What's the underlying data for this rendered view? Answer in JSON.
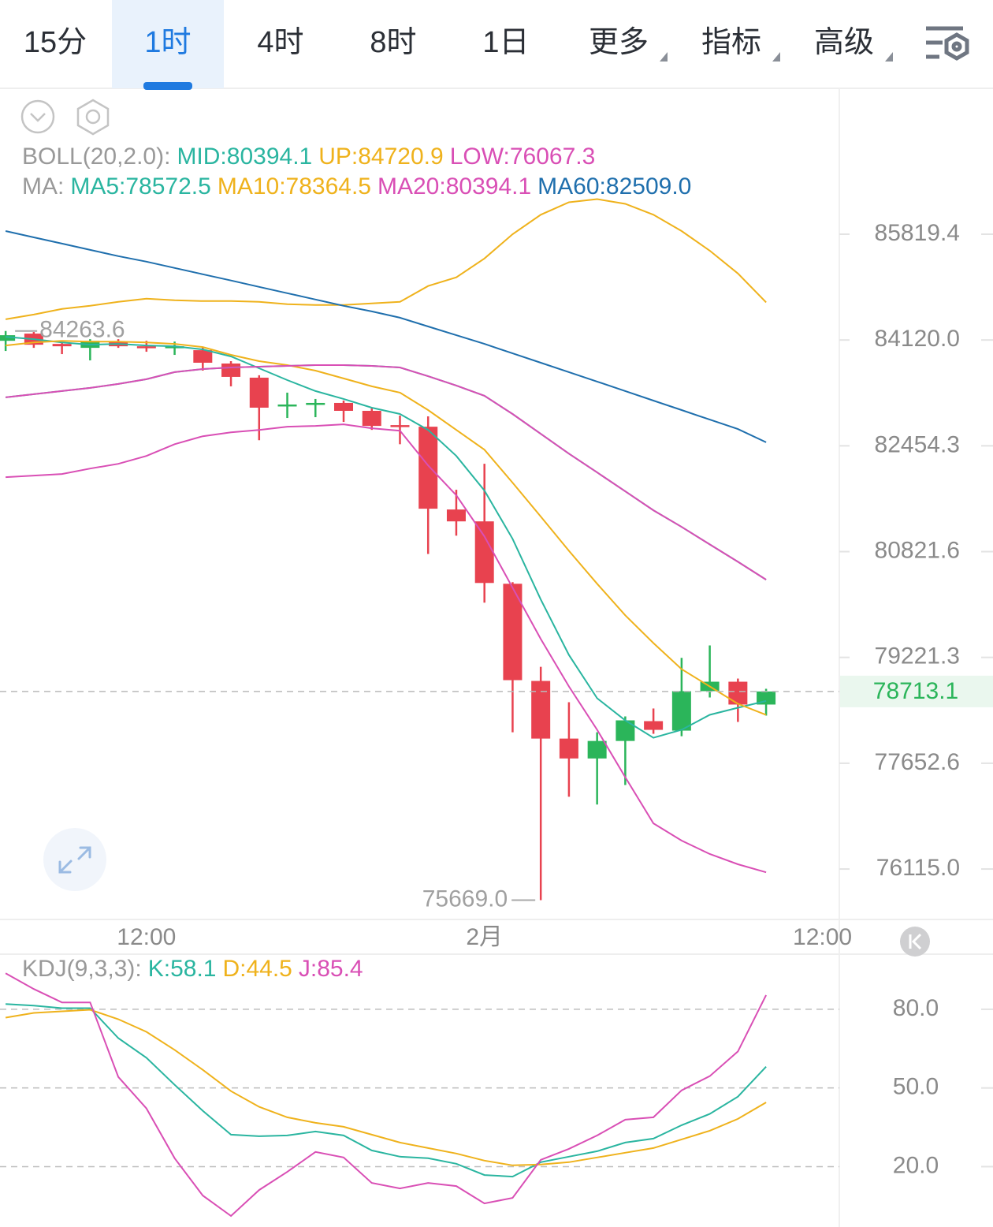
{
  "tabs": {
    "items": [
      {
        "label": "15分"
      },
      {
        "label": "1时"
      },
      {
        "label": "4时"
      },
      {
        "label": "8时"
      },
      {
        "label": "1日"
      },
      {
        "label": "更多",
        "dropdown": true
      },
      {
        "label": "指标",
        "dropdown": true
      },
      {
        "label": "高级",
        "dropdown": true
      }
    ],
    "selected": 1
  },
  "chart_data": [
    {
      "type": "candlestick",
      "log_scale": true,
      "xlim": [
        -0.2,
        29.6
      ],
      "xticks": [
        {
          "value": 5,
          "label": "12:00"
        },
        {
          "value": 17,
          "label": "2月"
        },
        {
          "value": 29,
          "label": "12:00"
        }
      ],
      "ylim": [
        75404,
        88219
      ],
      "yticks": [
        85819.4,
        {
          "value": 84120.0,
          "label": "84120.0"
        },
        82454.3,
        80821.6,
        79221.3,
        77652.6,
        {
          "value": 76115.0,
          "label": "76115.0"
        }
      ],
      "up_color": "#2bb55a",
      "down_color": "#e8424f",
      "open": [
        84107.6,
        84221.8,
        84057.9,
        83995.7,
        84095.1,
        84020.6,
        84008.1,
        83958.4,
        83747.1,
        83523.4,
        83075.9,
        83100.7,
        83125.6,
        83001.3,
        82777.6,
        82752.7,
        81467.7,
        81285.0,
        80332.1,
        78870.0,
        78015.2,
        77722.5,
        77980.1,
        78272.8,
        78132.3,
        78717.8,
        78858.3,
        78518.7
      ],
      "high": [
        84263.6,
        84247.1,
        84095.1,
        84133.0,
        84133.0,
        84107.6,
        84095.1,
        84008.1,
        83784.4,
        83560.7,
        83287.2,
        83187.8,
        83162.9,
        83038.6,
        82926.7,
        82914.3,
        81772.2,
        82174.2,
        80355.9,
        79080.8,
        78553.8,
        78108.9,
        78343.1,
        78460.2,
        79215.0,
        79400.7,
        78905.1,
        78752.9
      ],
      "low": [
        83946.0,
        83995.7,
        83896.3,
        83796.8,
        83995.7,
        83933.6,
        83883.8,
        83635.2,
        83386.7,
        82541.4,
        82889.4,
        82901.9,
        82827.3,
        82703.0,
        82479.2,
        80785.8,
        81065.8,
        80045.5,
        78108.9,
        75669.0,
        77162.8,
        77049.0,
        77333.7,
        78085.5,
        78050.4,
        78624.1,
        78261.1,
        78354.8
      ],
      "close": [
        84196.4,
        84045.4,
        84020.6,
        84107.6,
        84020.6,
        84008.1,
        84020.6,
        83759.5,
        83535.8,
        83051.0,
        83100.7,
        83125.6,
        83001.3,
        82765.1,
        82752.7,
        81479.9,
        81285.0,
        80344.0,
        78881.7,
        78015.2,
        77722.5,
        77980.1,
        78284.5,
        78144.0,
        78717.8,
        78858.3,
        78518.7,
        78713.1
      ],
      "annotations": [
        {
          "x": 0,
          "y": 84263.6
        },
        {
          "x": 19,
          "y": 75669.0,
          "label": "75669.0"
        }
      ],
      "indicators": [
        {
          "label": "BOLL(20,2.0):",
          "series": [
            {
              "name": "MID:",
              "color": "#2ab5a0",
              "current": 80394.1,
              "values": [
                83212.6,
                83262.3,
                83312.1,
                83361.8,
                83423.9,
                83498.5,
                83610.4,
                83660.1,
                83684.9,
                83697.4,
                83709.8,
                83722.2,
                83722.2,
                83709.8,
                83684.9,
                83546.2,
                83399.1,
                83237.5,
                82951.6,
                82640.8,
                82332.5,
                82040.2,
                81747.9,
                81455.5,
                81199.8,
                80931.7,
                80666.4,
                80394.1
              ]
            },
            {
              "name": "UP:",
              "color": "#efb21c",
              "current": 84720.9,
              "values": [
                84450.0,
                84526.0,
                84614.8,
                84665.4,
                84728.9,
                84779.6,
                84754.3,
                84741.6,
                84741.6,
                84728.9,
                84690.9,
                84678.2,
                84678.2,
                84703.6,
                84728.9,
                84982.5,
                85122.0,
                85426.3,
                85819.4,
                86136.4,
                86339.3,
                86390.0,
                86313.9,
                86136.4,
                85870.1,
                85553.1,
                85185.4,
                84720.9
              ]
            },
            {
              "name": "LOW:",
              "color": "#d94fb5",
              "current": 76067.3,
              "values": [
                81967.1,
                81991.5,
                82015.8,
                82101.1,
                82174.2,
                82296.0,
                82479.2,
                82603.5,
                82665.7,
                82703.0,
                82752.7,
                82765.1,
                82790.0,
                82727.8,
                82690.6,
                82150.0,
                81687.0,
                81053.2,
                80272.4,
                79496.3,
                78788.0,
                78144.0,
                77447.6,
                76775.6,
                76525.0,
                76331.4,
                76183.3,
                76067.3
              ]
            }
          ]
        },
        {
          "label": "MA:",
          "series": [
            {
              "name": "MA5:",
              "color": "#2ab5a0",
              "current": 78572.5,
              "values": [
                84171.0,
                84133.0,
                84082.7,
                84045.4,
                84057.9,
                84033.0,
                84020.6,
                83970.8,
                83859.0,
                83671.7,
                83485.1,
                83312.1,
                83187.8,
                83051.0,
                82951.6,
                82703.0,
                82296.0,
                81760.1,
                81017.0,
                80093.3,
                79257.5,
                78612.4,
                78284.5,
                78026.9,
                78144.0,
                78366.5,
                78471.9,
                78572.5
              ]
            },
            {
              "name": "MA10:",
              "color": "#efb21c",
              "current": 78364.5,
              "values": [
                84033.0,
                84082.7,
                84107.6,
                84095.1,
                84095.1,
                84082.7,
                84057.9,
                84008.1,
                83883.8,
                83784.4,
                83722.2,
                83635.2,
                83510.9,
                83386.7,
                83287.2,
                83013.8,
                82703.0,
                82393.4,
                81881.8,
                81358.1,
                80834.3,
                80332.1,
                79854.5,
                79436.6,
                79045.7,
                78788.0,
                78530.4,
                78364.5
              ]
            },
            {
              "name": "MA20:",
              "color": "#d94fb5",
              "current": 80394.1,
              "values": [
                83212.6,
                83262.3,
                83312.1,
                83361.8,
                83423.9,
                83498.5,
                83610.4,
                83660.1,
                83684.9,
                83697.4,
                83709.8,
                83722.2,
                83722.2,
                83709.8,
                83684.9,
                83546.2,
                83399.1,
                83237.5,
                82951.6,
                82640.8,
                82332.5,
                82040.2,
                81747.9,
                81455.5,
                81199.8,
                80931.7,
                80666.4,
                80394.1
              ]
            },
            {
              "name": "MA60:",
              "color": "#1f6fad",
              "current": {
                "value": 82509.0,
                "label": "82509.0"
              },
              "values": [
                85870.1,
                85768.7,
                85667.3,
                85565.8,
                85464.4,
                85375.6,
                85274.2,
                85172.7,
                85071.3,
                84969.8,
                84868.3,
                84766.9,
                84665.4,
                84576.6,
                84475.0,
                84335.6,
                84196.1,
                84057.9,
                83908.7,
                83759.5,
                83610.4,
                83461.2,
                83312.1,
                83162.9,
                83013.8,
                82864.6,
                82715.5,
                82509.0
              ]
            }
          ]
        }
      ]
    },
    {
      "type": "line",
      "label": "KDJ(9,3,3):",
      "xlim": [
        -0.2,
        29.6
      ],
      "ylim": [
        -3,
        101
      ],
      "grid": true,
      "yticks": [
        {
          "value": 80.0,
          "label": "80.0"
        },
        {
          "value": 50.0,
          "label": "50.0"
        },
        {
          "value": 20.0,
          "label": "20.0"
        }
      ],
      "series": [
        {
          "name": "K:",
          "color": "#2ab5a0",
          "current": 58.1,
          "values": [
            82.0,
            81.4,
            80.4,
            80.4,
            69.0,
            61.5,
            51.2,
            41.3,
            32.2,
            31.6,
            31.9,
            33.4,
            31.9,
            26.2,
            23.8,
            23.2,
            21.1,
            16.8,
            16.2,
            21.7,
            23.8,
            25.9,
            29.2,
            30.7,
            35.8,
            40.1,
            46.7,
            58.1
          ]
        },
        {
          "name": "D:",
          "color": "#efb21c",
          "current": 44.5,
          "values": [
            76.8,
            78.6,
            79.2,
            79.8,
            76.2,
            71.4,
            64.5,
            56.9,
            48.8,
            42.8,
            38.8,
            36.7,
            35.2,
            32.2,
            29.2,
            27.1,
            25.0,
            22.3,
            20.5,
            20.8,
            21.7,
            23.5,
            25.3,
            27.1,
            30.4,
            33.7,
            38.2,
            44.5
          ]
        },
        {
          "name": "J:",
          "color": "#d94fb5",
          "current": 85.4,
          "values": [
            93.7,
            87.7,
            82.6,
            82.6,
            54.2,
            42.2,
            23.2,
            9.0,
            1.2,
            11.1,
            18.0,
            25.6,
            23.5,
            13.8,
            11.7,
            13.8,
            12.6,
            6.0,
            8.1,
            22.6,
            26.8,
            31.9,
            37.9,
            38.8,
            49.1,
            54.5,
            63.9,
            85.4
          ]
        }
      ]
    }
  ]
}
